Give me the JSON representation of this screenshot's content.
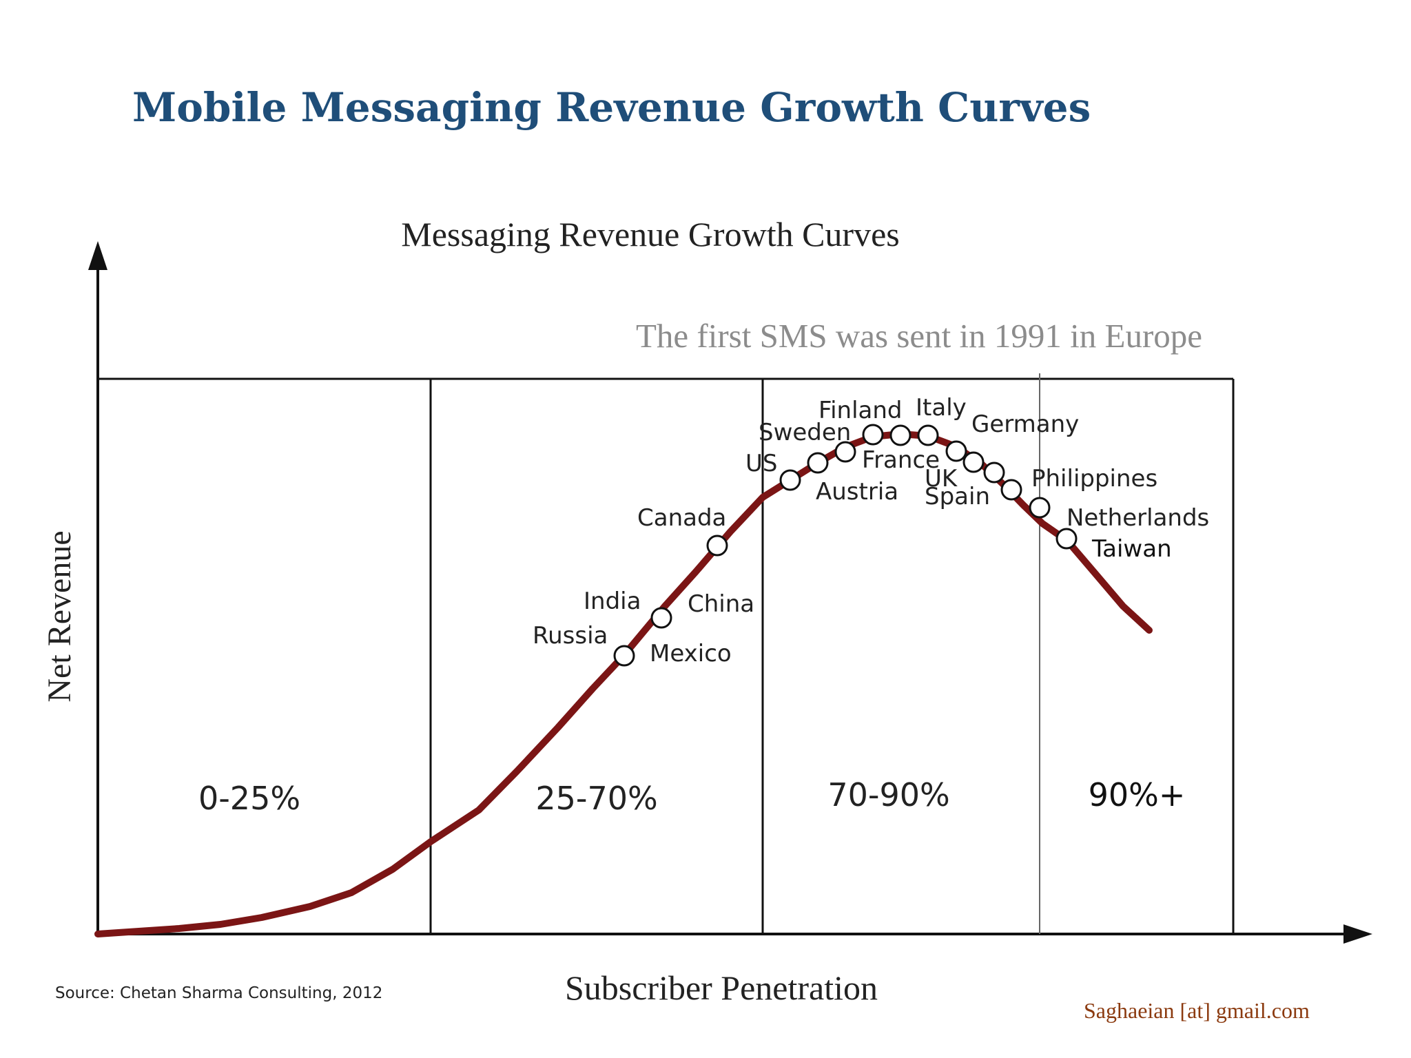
{
  "slide": {
    "title": "Mobile Messaging Revenue Growth Curves",
    "credit": "Saghaeian [at] gmail.com"
  },
  "diagram": {
    "title": "Messaging Revenue Growth Curves",
    "note": "The first SMS was sent in 1991 in Europe",
    "y_axis_label": "Net Revenue",
    "x_axis_label": "Subscriber Penetration",
    "source": "Source:  Chetan Sharma Consulting, 2012",
    "zones": [
      "0-25%",
      "25-70%",
      "70-90%",
      "90%+"
    ],
    "countries": [
      "Russia",
      "India",
      "Mexico",
      "China",
      "Canada",
      "US",
      "Sweden",
      "Austria",
      "Finland",
      "France",
      "Italy",
      "Germany",
      "UK",
      "Spain",
      "Philippines",
      "Netherlands",
      "Taiwan"
    ]
  },
  "colors": {
    "title": "#1f4e79",
    "curve": "#7b1515",
    "credit": "#8b3a0f",
    "note": "#8c8c8c"
  }
}
